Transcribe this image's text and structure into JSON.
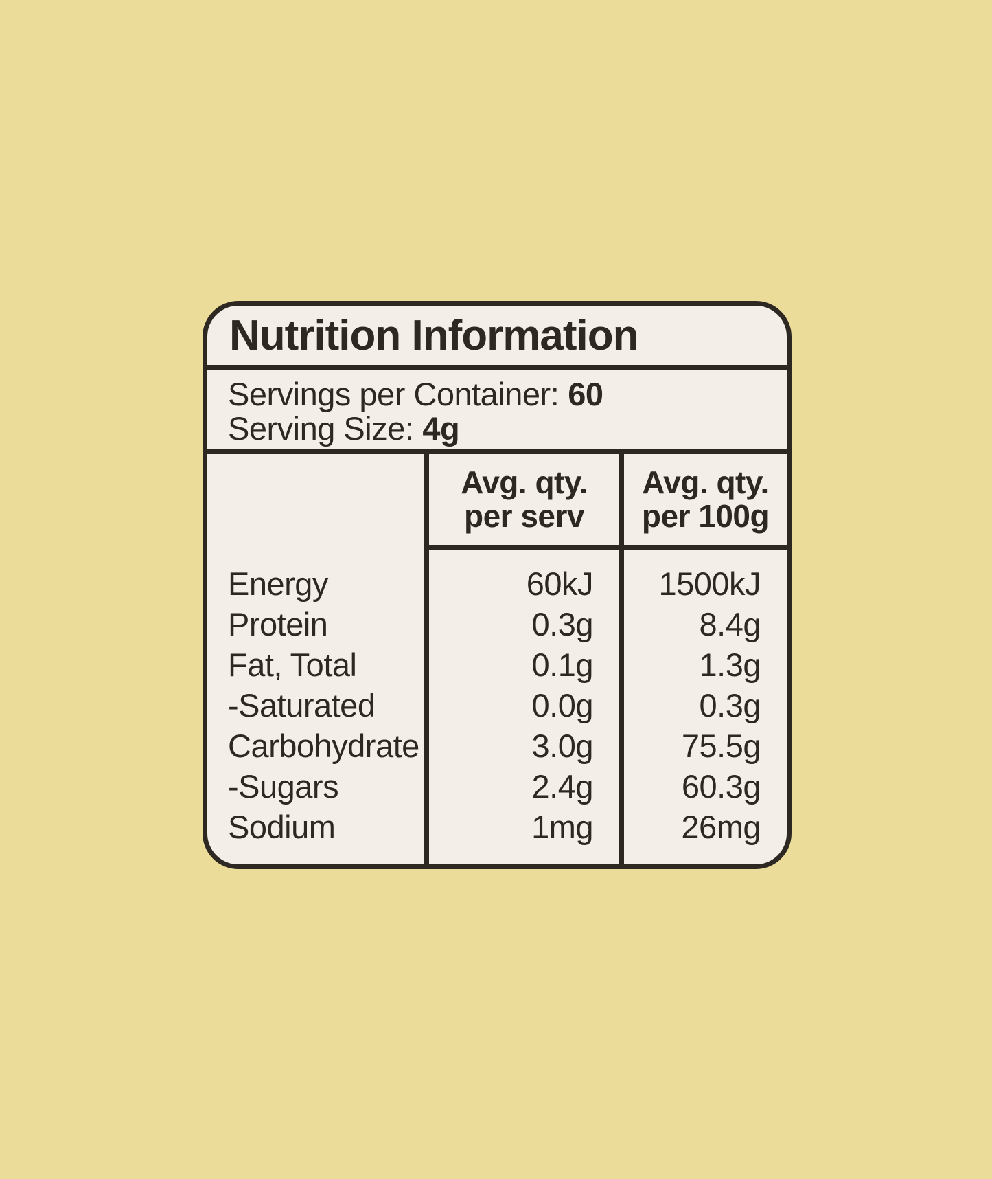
{
  "colors": {
    "background": "#ecdc9a",
    "panel": "#f3efe8",
    "ink": "#2e2822"
  },
  "label": {
    "title": "Nutrition Information",
    "servings_per_container": {
      "label": "Servings per Container:",
      "value": "60"
    },
    "serving_size": {
      "label": "Serving Size:",
      "value": "4g"
    },
    "table": {
      "columns": [
        {
          "line1": "Avg. qty.",
          "line2": "per serv"
        },
        {
          "line1": "Avg. qty.",
          "line2": "per 100g"
        }
      ],
      "rows": [
        {
          "label": "Energy",
          "per_serv": "60kJ",
          "per_100g": "1500kJ"
        },
        {
          "label": "Protein",
          "per_serv": "0.3g",
          "per_100g": "8.4g"
        },
        {
          "label": "Fat, Total",
          "per_serv": "0.1g",
          "per_100g": "1.3g"
        },
        {
          "label": "-Saturated",
          "per_serv": "0.0g",
          "per_100g": "0.3g"
        },
        {
          "label": "Carbohydrate",
          "per_serv": "3.0g",
          "per_100g": "75.5g"
        },
        {
          "label": "-Sugars",
          "per_serv": "2.4g",
          "per_100g": "60.3g"
        },
        {
          "label": "Sodium",
          "per_serv": "1mg",
          "per_100g": "26mg"
        }
      ]
    }
  }
}
